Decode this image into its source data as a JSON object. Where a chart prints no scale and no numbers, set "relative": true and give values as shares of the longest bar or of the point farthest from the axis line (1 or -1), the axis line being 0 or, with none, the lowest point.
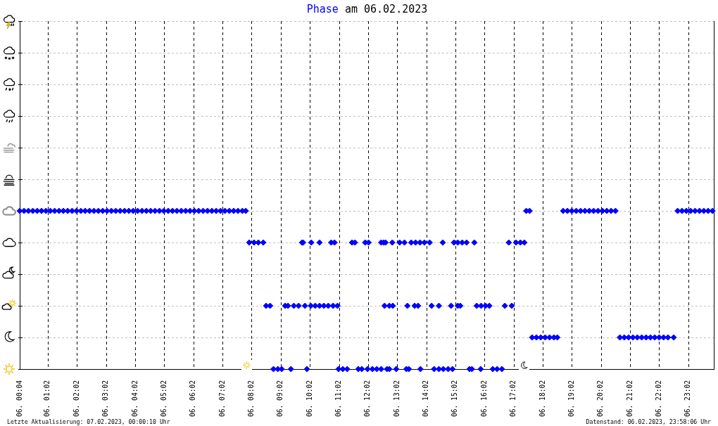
{
  "chart_data": {
    "type": "scatter",
    "title": "am 06.02.2023",
    "legend": "top",
    "relative": true,
    "grid": true,
    "marker": "diamond",
    "tick_labels": "x",
    "xlim": [
      "2023-02-06T00:04",
      "2023-02-06T23:56"
    ],
    "xticks": [
      {
        "value": "2023-02-06T00:04",
        "label": "06. 00:04"
      },
      {
        "value": "2023-02-06T01:02",
        "label": "06. 01:02"
      },
      {
        "value": "2023-02-06T02:02",
        "label": "06. 02:02"
      },
      {
        "value": "2023-02-06T03:02",
        "label": "06. 03:02"
      },
      {
        "value": "2023-02-06T04:02",
        "label": "06. 04:02"
      },
      {
        "value": "2023-02-06T05:02",
        "label": "06. 05:02"
      },
      {
        "value": "2023-02-06T06:02",
        "label": "06. 06:02"
      },
      {
        "value": "2023-02-06T07:02",
        "label": "06. 07:02"
      },
      {
        "value": "2023-02-06T08:02",
        "label": "06. 08:02"
      },
      {
        "value": "2023-02-06T09:02",
        "label": "06. 09:02"
      },
      {
        "value": "2023-02-06T10:02",
        "label": "06. 10:02"
      },
      {
        "value": "2023-02-06T11:02",
        "label": "06. 11:02"
      },
      {
        "value": "2023-02-06T12:02",
        "label": "06. 12:02"
      },
      {
        "value": "2023-02-06T13:02",
        "label": "06. 13:02"
      },
      {
        "value": "2023-02-06T14:02",
        "label": "06. 14:02"
      },
      {
        "value": "2023-02-06T15:02",
        "label": "06. 15:02"
      },
      {
        "value": "2023-02-06T16:02",
        "label": "06. 16:02"
      },
      {
        "value": "2023-02-06T17:02",
        "label": "06. 17:02"
      },
      {
        "value": "2023-02-06T18:02",
        "label": "06. 18:02"
      },
      {
        "value": "2023-02-06T19:02",
        "label": "06. 19:02"
      },
      {
        "value": "2023-02-06T20:02",
        "label": "06. 20:02"
      },
      {
        "value": "2023-02-06T21:02",
        "label": "06. 21:02"
      },
      {
        "value": "2023-02-06T22:02",
        "label": "06. 22:02"
      },
      {
        "value": "2023-02-06T23:02",
        "label": "06. 23:02"
      }
    ],
    "x": [
      "2023-02-06T00:04",
      "2023-02-06T00:13",
      "2023-02-06T00:22",
      "2023-02-06T00:31",
      "2023-02-06T00:40",
      "2023-02-06T00:49",
      "2023-02-06T00:58",
      "2023-02-06T01:07",
      "2023-02-06T01:16",
      "2023-02-06T01:25",
      "2023-02-06T01:34",
      "2023-02-06T01:43",
      "2023-02-06T01:52",
      "2023-02-06T02:01",
      "2023-02-06T02:10",
      "2023-02-06T02:19",
      "2023-02-06T02:28",
      "2023-02-06T02:37",
      "2023-02-06T02:46",
      "2023-02-06T02:55",
      "2023-02-06T03:04",
      "2023-02-06T03:13",
      "2023-02-06T03:22",
      "2023-02-06T03:31",
      "2023-02-06T03:40",
      "2023-02-06T03:49",
      "2023-02-06T03:58",
      "2023-02-06T04:07",
      "2023-02-06T04:16",
      "2023-02-06T04:25",
      "2023-02-06T04:34",
      "2023-02-06T04:43",
      "2023-02-06T04:52",
      "2023-02-06T05:01",
      "2023-02-06T05:10",
      "2023-02-06T05:19",
      "2023-02-06T05:28",
      "2023-02-06T05:37",
      "2023-02-06T05:46",
      "2023-02-06T05:55",
      "2023-02-06T06:04",
      "2023-02-06T06:13",
      "2023-02-06T06:22",
      "2023-02-06T06:31",
      "2023-02-06T06:40",
      "2023-02-06T06:49",
      "2023-02-06T06:58",
      "2023-02-06T07:07",
      "2023-02-06T07:16",
      "2023-02-06T07:25",
      "2023-02-06T07:34",
      "2023-02-06T07:43",
      "2023-02-06T07:50",
      "2023-02-06T17:28",
      "2023-02-06T17:35",
      "2023-02-06T18:44",
      "2023-02-06T18:53",
      "2023-02-06T19:02",
      "2023-02-06T19:11",
      "2023-02-06T19:20",
      "2023-02-06T19:29",
      "2023-02-06T19:38",
      "2023-02-06T19:47",
      "2023-02-06T19:56",
      "2023-02-06T20:05",
      "2023-02-06T20:14",
      "2023-02-06T20:23",
      "2023-02-06T20:32",
      "2023-02-06T22:40",
      "2023-02-06T22:49",
      "2023-02-06T22:58",
      "2023-02-06T23:07",
      "2023-02-06T23:16",
      "2023-02-06T23:25",
      "2023-02-06T23:34",
      "2023-02-06T23:43",
      "2023-02-06T23:52",
      "2023-02-06T07:57",
      "2023-02-06T08:07",
      "2023-02-06T08:16",
      "2023-02-06T08:26",
      "2023-02-06T09:46",
      "2023-02-06T09:48",
      "2023-02-06T10:05",
      "2023-02-06T10:22",
      "2023-02-06T10:46",
      "2023-02-06T10:53",
      "2023-02-06T11:29",
      "2023-02-06T11:35",
      "2023-02-06T11:56",
      "2023-02-06T12:03",
      "2023-02-06T12:29",
      "2023-02-06T12:34",
      "2023-02-06T12:38",
      "2023-02-06T12:52",
      "2023-02-06T13:07",
      "2023-02-06T13:17",
      "2023-02-06T13:31",
      "2023-02-06T13:40",
      "2023-02-06T13:49",
      "2023-02-06T13:58",
      "2023-02-06T14:09",
      "2023-02-06T14:36",
      "2023-02-06T14:59",
      "2023-02-06T15:07",
      "2023-02-06T15:16",
      "2023-02-06T15:25",
      "2023-02-06T15:41",
      "2023-02-06T16:52",
      "2023-02-06T17:07",
      "2023-02-06T17:16",
      "2023-02-06T17:24",
      "2023-02-06T08:32",
      "2023-02-06T08:40",
      "2023-02-06T09:11",
      "2023-02-06T09:17",
      "2023-02-06T09:29",
      "2023-02-06T09:39",
      "2023-02-06T09:52",
      "2023-02-06T10:04",
      "2023-02-06T10:13",
      "2023-02-06T10:22",
      "2023-02-06T10:31",
      "2023-02-06T10:40",
      "2023-02-06T10:50",
      "2023-02-06T10:59",
      "2023-02-06T12:36",
      "2023-02-06T12:46",
      "2023-02-06T12:53",
      "2023-02-06T13:23",
      "2023-02-06T13:38",
      "2023-02-06T13:45",
      "2023-02-06T14:13",
      "2023-02-06T14:28",
      "2023-02-06T14:53",
      "2023-02-06T15:07",
      "2023-02-06T15:12",
      "2023-02-06T15:46",
      "2023-02-06T15:55",
      "2023-02-06T16:04",
      "2023-02-06T16:12",
      "2023-02-06T16:44",
      "2023-02-06T16:58",
      "2023-02-06T17:40",
      "2023-02-06T17:49",
      "2023-02-06T17:58",
      "2023-02-06T18:07",
      "2023-02-06T18:16",
      "2023-02-06T18:25",
      "2023-02-06T18:32",
      "2023-02-06T20:41",
      "2023-02-06T20:50",
      "2023-02-06T20:59",
      "2023-02-06T21:08",
      "2023-02-06T21:17",
      "2023-02-06T21:26",
      "2023-02-06T21:35",
      "2023-02-06T21:44",
      "2023-02-06T21:53",
      "2023-02-06T22:02",
      "2023-02-06T22:11",
      "2023-02-06T22:20",
      "2023-02-06T22:32",
      "2023-02-06T08:47",
      "2023-02-06T08:56",
      "2023-02-06T09:04",
      "2023-02-06T09:23",
      "2023-02-06T09:56",
      "2023-02-06T11:01",
      "2023-02-06T11:10",
      "2023-02-06T11:19",
      "2023-02-06T11:42",
      "2023-02-06T11:49",
      "2023-02-06T12:01",
      "2023-02-06T12:11",
      "2023-02-06T12:20",
      "2023-02-06T12:29",
      "2023-02-06T12:41",
      "2023-02-06T12:46",
      "2023-02-06T13:00",
      "2023-02-06T13:21",
      "2023-02-06T13:26",
      "2023-02-06T13:50",
      "2023-02-06T14:18",
      "2023-02-06T14:28",
      "2023-02-06T14:37",
      "2023-02-06T14:47",
      "2023-02-06T14:56",
      "2023-02-06T15:31",
      "2023-02-06T15:36",
      "2023-02-06T15:54",
      "2023-02-06T16:19",
      "2023-02-06T16:28",
      "2023-02-06T16:38"
    ],
    "series": [
      {
        "name": "Phase",
        "color": "#0000ff",
        "values": [
          1,
          1,
          1,
          1,
          1,
          1,
          1,
          1,
          1,
          1,
          1,
          1,
          1,
          1,
          1,
          1,
          1,
          1,
          1,
          1,
          1,
          1,
          1,
          1,
          1,
          1,
          1,
          1,
          1,
          1,
          1,
          1,
          1,
          1,
          1,
          1,
          1,
          1,
          1,
          1,
          1,
          1,
          1,
          1,
          1,
          1,
          1,
          1,
          1,
          1,
          1,
          1,
          1,
          1,
          1,
          1,
          1,
          1,
          1,
          1,
          1,
          1,
          1,
          1,
          1,
          1,
          1,
          1,
          1,
          1,
          1,
          1,
          1,
          1,
          1,
          1,
          1,
          0.8,
          0.8,
          0.8,
          0.8,
          0.8,
          0.8,
          0.8,
          0.8,
          0.8,
          0.8,
          0.8,
          0.8,
          0.8,
          0.8,
          0.8,
          0.8,
          0.8,
          0.8,
          0.8,
          0.8,
          0.8,
          0.8,
          0.8,
          0.8,
          0.8,
          0.8,
          0.8,
          0.8,
          0.8,
          0.8,
          0.8,
          0.8,
          0.8,
          0.8,
          0.8,
          0.4,
          0.4,
          0.4,
          0.4,
          0.4,
          0.4,
          0.4,
          0.4,
          0.4,
          0.4,
          0.4,
          0.4,
          0.4,
          0.4,
          0.4,
          0.4,
          0.4,
          0.4,
          0.4,
          0.4,
          0.4,
          0.4,
          0.4,
          0.4,
          0.4,
          0.4,
          0.4,
          0.4,
          0.4,
          0.4,
          0.4,
          0.2,
          0.2,
          0.2,
          0.2,
          0.2,
          0.2,
          0.2,
          0.2,
          0.2,
          0.2,
          0.2,
          0.2,
          0.2,
          0.2,
          0.2,
          0.2,
          0.2,
          0.2,
          0.2,
          0.2,
          0,
          0,
          0,
          0,
          0,
          0,
          0,
          0,
          0,
          0,
          0,
          0,
          0,
          0,
          0,
          0,
          0,
          0,
          0,
          0,
          0,
          0,
          0,
          0,
          0,
          0,
          0,
          0,
          0,
          0,
          0
        ]
      }
    ],
    "annotations": [
      "Letzte Aktualisierung: 07.02.2023, 00:00:10 Uhr",
      "Datenstand: 06.02.2023, 23:58:06 Uhr"
    ]
  }
}
